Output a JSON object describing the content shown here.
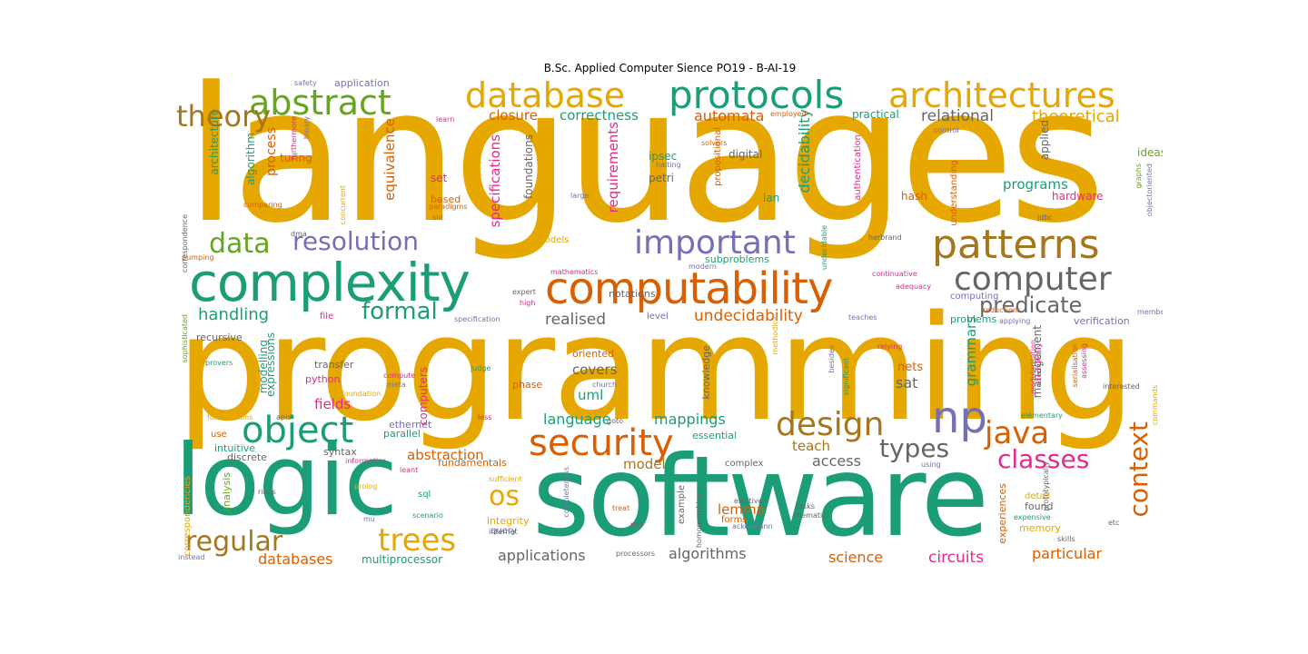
{
  "figure": {
    "title": "B.Sc. Applied Computer Sience  PO19 - B-AI-19"
  },
  "palette": {
    "gold": "#e6a700",
    "green": "#1b9e77",
    "orange": "#d95f02",
    "purple": "#7570b3",
    "magenta": "#e7298a",
    "lime": "#66a61e",
    "brown": "#a6761d",
    "gray": "#666666"
  },
  "words": [
    {
      "text": "languages",
      "color": "gold"
    },
    {
      "text": "programming",
      "color": "gold"
    },
    {
      "text": "software",
      "color": "green"
    },
    {
      "text": "logic",
      "color": "green"
    },
    {
      "text": "complexity",
      "color": "green"
    },
    {
      "text": "computability",
      "color": "orange"
    },
    {
      "text": "database",
      "color": "gold"
    },
    {
      "text": "protocols",
      "color": "green"
    },
    {
      "text": "architectures",
      "color": "gold"
    },
    {
      "text": "abstract",
      "color": "lime"
    },
    {
      "text": "patterns",
      "color": "brown"
    },
    {
      "text": "important",
      "color": "purple"
    },
    {
      "text": "computer",
      "color": "gray"
    },
    {
      "text": "resolution",
      "color": "purple"
    },
    {
      "text": "data",
      "color": "lime"
    },
    {
      "text": "theory",
      "color": "brown"
    },
    {
      "text": "object",
      "color": "green"
    },
    {
      "text": "security",
      "color": "orange"
    },
    {
      "text": "design",
      "color": "brown"
    },
    {
      "text": "np",
      "color": "purple"
    },
    {
      "text": "java",
      "color": "orange"
    },
    {
      "text": "types",
      "color": "gray"
    },
    {
      "text": "classes",
      "color": "magenta"
    },
    {
      "text": "context",
      "color": "orange"
    },
    {
      "text": "regular",
      "color": "brown"
    },
    {
      "text": "trees",
      "color": "gold"
    },
    {
      "text": "os",
      "color": "gold"
    },
    {
      "text": "formal",
      "color": "green"
    },
    {
      "text": "predicate",
      "color": "gray"
    },
    {
      "text": "undecidability",
      "color": "orange"
    },
    {
      "text": "relational",
      "color": "gray"
    },
    {
      "text": "theoretical",
      "color": "gold"
    },
    {
      "text": "closure",
      "color": "orange"
    },
    {
      "text": "correctness",
      "color": "green"
    },
    {
      "text": "automata",
      "color": "orange"
    },
    {
      "text": "handling",
      "color": "green"
    },
    {
      "text": "realised",
      "color": "gray"
    },
    {
      "text": "decidability",
      "color": "green"
    },
    {
      "text": "specifications",
      "color": "magenta"
    },
    {
      "text": "requirements",
      "color": "magenta"
    },
    {
      "text": "equivalence",
      "color": "orange"
    },
    {
      "text": "programs",
      "color": "green"
    },
    {
      "text": "mappings",
      "color": "green"
    },
    {
      "text": "language",
      "color": "green"
    },
    {
      "text": "abstraction",
      "color": "orange"
    },
    {
      "text": "applications",
      "color": "gray"
    },
    {
      "text": "algorithms",
      "color": "gray"
    },
    {
      "text": "science",
      "color": "orange"
    },
    {
      "text": "circuits",
      "color": "magenta"
    },
    {
      "text": "particular",
      "color": "orange"
    },
    {
      "text": "databases",
      "color": "orange"
    },
    {
      "text": "multiprocessor",
      "color": "green"
    },
    {
      "text": "fields",
      "color": "magenta"
    },
    {
      "text": "covers",
      "color": "gray"
    },
    {
      "text": "uml",
      "color": "green"
    },
    {
      "text": "teach",
      "color": "brown"
    },
    {
      "text": "access",
      "color": "gray"
    },
    {
      "text": "model",
      "color": "brown"
    },
    {
      "text": "lemma",
      "color": "orange"
    },
    {
      "text": "grammars",
      "color": "green"
    },
    {
      "text": "sat",
      "color": "gray"
    },
    {
      "text": "nets",
      "color": "orange"
    },
    {
      "text": "management",
      "color": "gray"
    },
    {
      "text": "expressions",
      "color": "green"
    },
    {
      "text": "modelling",
      "color": "green"
    },
    {
      "text": "process",
      "color": "orange"
    },
    {
      "text": "turing",
      "color": "orange"
    },
    {
      "text": "algorithm",
      "color": "green"
    },
    {
      "text": "architecture",
      "color": "green"
    },
    {
      "text": "ipsec",
      "color": "green"
    },
    {
      "text": "petri",
      "color": "gray"
    },
    {
      "text": "digital",
      "color": "gray"
    },
    {
      "text": "lan",
      "color": "green"
    },
    {
      "text": "hash",
      "color": "orange"
    },
    {
      "text": "hardware",
      "color": "magenta"
    },
    {
      "text": "practical",
      "color": "green"
    },
    {
      "text": "ideas",
      "color": "lime"
    },
    {
      "text": "applied",
      "color": "gray"
    },
    {
      "text": "foundations",
      "color": "gray"
    },
    {
      "text": "set",
      "color": "magenta"
    },
    {
      "text": "based",
      "color": "orange"
    },
    {
      "text": "models",
      "color": "gold"
    },
    {
      "text": "notations",
      "color": "gray"
    },
    {
      "text": "subproblems",
      "color": "green"
    },
    {
      "text": "problems",
      "color": "green"
    },
    {
      "text": "computing",
      "color": "purple"
    },
    {
      "text": "verification",
      "color": "purple"
    },
    {
      "text": "level",
      "color": "purple"
    },
    {
      "text": "oriented",
      "color": "orange"
    },
    {
      "text": "knowledge",
      "color": "gray"
    },
    {
      "text": "phase",
      "color": "orange"
    },
    {
      "text": "python",
      "color": "magenta"
    },
    {
      "text": "transfer",
      "color": "gray"
    },
    {
      "text": "parallel",
      "color": "green"
    },
    {
      "text": "ethernet",
      "color": "purple"
    },
    {
      "text": "intuitive",
      "color": "green"
    },
    {
      "text": "discrete",
      "color": "gray"
    },
    {
      "text": "syntax",
      "color": "gray"
    },
    {
      "text": "fundamentals",
      "color": "orange"
    },
    {
      "text": "essential",
      "color": "green"
    },
    {
      "text": "complex",
      "color": "gray"
    },
    {
      "text": "forms",
      "color": "orange"
    },
    {
      "text": "sql",
      "color": "green"
    },
    {
      "text": "integrity",
      "color": "gold"
    },
    {
      "text": "query",
      "color": "purple"
    },
    {
      "text": "memory",
      "color": "gold"
    },
    {
      "text": "detail",
      "color": "gold"
    },
    {
      "text": "found",
      "color": "gray"
    },
    {
      "text": "experiences",
      "color": "orange"
    },
    {
      "text": "recursive",
      "color": "gray"
    },
    {
      "text": "file",
      "color": "magenta"
    },
    {
      "text": "application",
      "color": "purple"
    },
    {
      "text": "safety",
      "color": "purple"
    },
    {
      "text": "authentication",
      "color": "magenta"
    },
    {
      "text": "understanding",
      "color": "orange"
    },
    {
      "text": "propositional",
      "color": "orange"
    },
    {
      "text": "solvers",
      "color": "orange"
    },
    {
      "text": "halting",
      "color": "purple"
    },
    {
      "text": "large",
      "color": "purple"
    },
    {
      "text": "jdbc",
      "color": "gray"
    },
    {
      "text": "herbrand",
      "color": "gray"
    },
    {
      "text": "modern",
      "color": "purple"
    },
    {
      "text": "mathematics",
      "color": "magenta"
    },
    {
      "text": "continuative",
      "color": "magenta"
    },
    {
      "text": "adequacy",
      "color": "magenta"
    },
    {
      "text": "reductions",
      "color": "orange"
    },
    {
      "text": "applying",
      "color": "purple"
    },
    {
      "text": "teaches",
      "color": "purple"
    },
    {
      "text": "relying",
      "color": "magenta"
    },
    {
      "text": "interested",
      "color": "gray"
    },
    {
      "text": "elementary",
      "color": "green"
    },
    {
      "text": "expensive",
      "color": "green"
    },
    {
      "text": "skills",
      "color": "gray"
    },
    {
      "text": "etc",
      "color": "gray"
    },
    {
      "text": "elective",
      "color": "gray"
    },
    {
      "text": "tasks",
      "color": "gray"
    },
    {
      "text": "thematic",
      "color": "gray"
    },
    {
      "text": "ackermann",
      "color": "purple"
    },
    {
      "text": "example",
      "color": "gray"
    },
    {
      "text": "treat",
      "color": "orange"
    },
    {
      "text": "run",
      "color": "magenta"
    },
    {
      "text": "processors",
      "color": "gray"
    },
    {
      "text": "internet",
      "color": "gray"
    },
    {
      "text": "scenario",
      "color": "green"
    },
    {
      "text": "sufficient",
      "color": "gold"
    },
    {
      "text": "leant",
      "color": "magenta"
    },
    {
      "text": "informatics",
      "color": "magenta"
    },
    {
      "text": "prolog",
      "color": "gold"
    },
    {
      "text": "rings",
      "color": "gray"
    },
    {
      "text": "mu",
      "color": "purple"
    },
    {
      "text": "instead",
      "color": "purple"
    },
    {
      "text": "use",
      "color": "orange"
    },
    {
      "text": "formulations",
      "color": "gold"
    },
    {
      "text": "apis",
      "color": "gray"
    },
    {
      "text": "less",
      "color": "magenta"
    },
    {
      "text": "goto",
      "color": "gray"
    },
    {
      "text": "church",
      "color": "purple"
    },
    {
      "text": "compute",
      "color": "magenta"
    },
    {
      "text": "meta",
      "color": "purple"
    },
    {
      "text": "foundation",
      "color": "gold"
    },
    {
      "text": "provers",
      "color": "green"
    },
    {
      "text": "specification",
      "color": "purple"
    },
    {
      "text": "expert",
      "color": "gray"
    },
    {
      "text": "high",
      "color": "magenta"
    },
    {
      "text": "judge",
      "color": "green"
    },
    {
      "text": "pumping",
      "color": "orange"
    },
    {
      "text": "dma",
      "color": "gray"
    },
    {
      "text": "sld",
      "color": "orange"
    },
    {
      "text": "paradigms",
      "color": "orange"
    },
    {
      "text": "comparing",
      "color": "orange"
    },
    {
      "text": "concurrent",
      "color": "gold"
    },
    {
      "text": "learn",
      "color": "magenta"
    },
    {
      "text": "employed",
      "color": "orange"
    },
    {
      "text": "control",
      "color": "purple"
    },
    {
      "text": "members",
      "color": "purple"
    },
    {
      "text": "using",
      "color": "purple"
    },
    {
      "text": "computers",
      "color": "magenta"
    },
    {
      "text": "furthermore",
      "color": "magenta"
    },
    {
      "text": "binary",
      "color": "purple"
    },
    {
      "text": "correspondence",
      "color": "gray"
    },
    {
      "text": "sophisticated",
      "color": "lime"
    },
    {
      "text": "correspondencies",
      "color": "gold"
    },
    {
      "text": "analysis",
      "color": "lime"
    },
    {
      "text": "graphs",
      "color": "lime"
    },
    {
      "text": "objectoriented",
      "color": "purple"
    },
    {
      "text": "undecidable",
      "color": "green"
    },
    {
      "text": "besides",
      "color": "purple"
    },
    {
      "text": "significant",
      "color": "green"
    },
    {
      "text": "methodical",
      "color": "gold"
    },
    {
      "text": "homomorphisms",
      "color": "gray"
    },
    {
      "text": "completeness",
      "color": "purple"
    },
    {
      "text": "prototypically",
      "color": "gray"
    },
    {
      "text": "modularisation",
      "color": "magenta"
    },
    {
      "text": "assessing",
      "color": "magenta"
    },
    {
      "text": "exemplarily",
      "color": "magenta"
    },
    {
      "text": "serialisation",
      "color": "orange"
    },
    {
      "text": "commands",
      "color": "gold"
    },
    {
      "text": "reflections",
      "color": "orange"
    }
  ]
}
